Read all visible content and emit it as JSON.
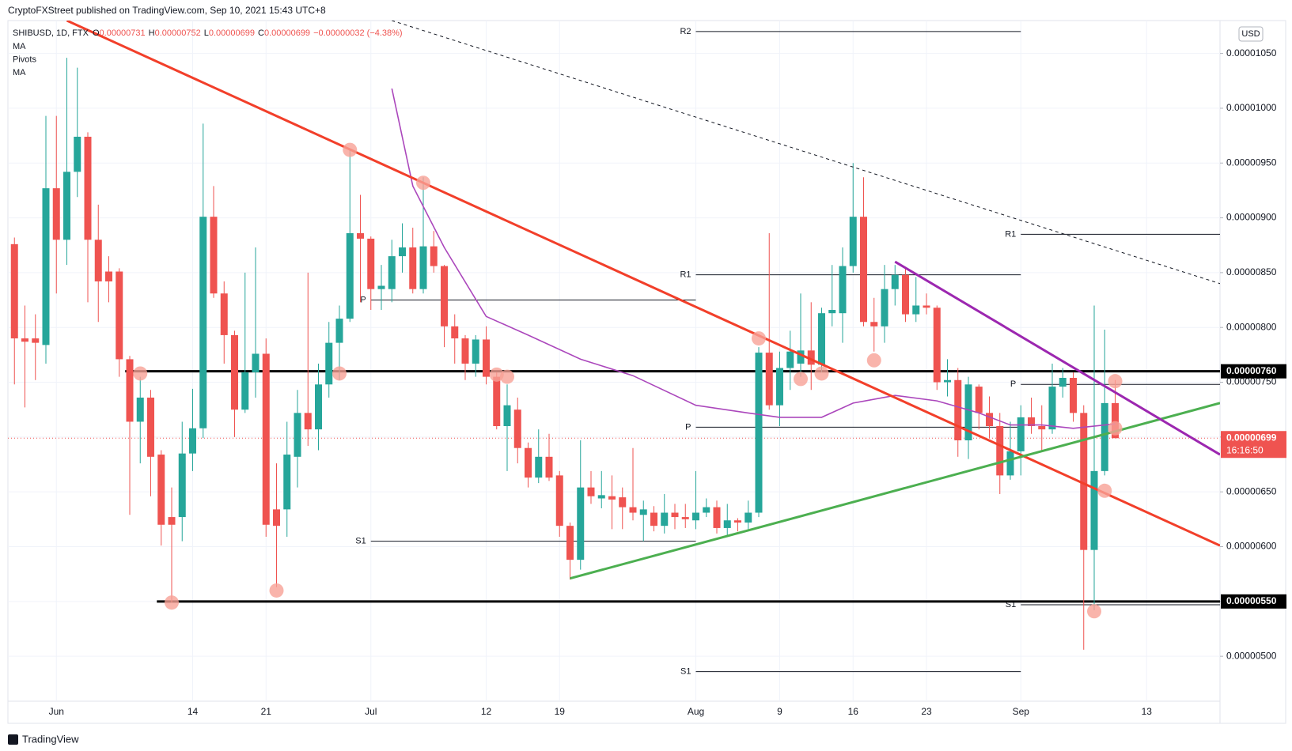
{
  "header": {
    "published": "CryptoFXStreet published on TradingView.com, Sep 10, 2021 15:43 UTC+8",
    "symbol": "SHIBUSD, 1D, FTX",
    "fields": [
      {
        "key": "O",
        "text": "0.00000731"
      },
      {
        "key": "H",
        "text": "0.00000752"
      },
      {
        "key": "L",
        "text": "0.00000699"
      },
      {
        "key": "C",
        "text": "0.00000699"
      }
    ],
    "change": "−0.00000032 (−4.38%)",
    "indicators": [
      "MA",
      "Pivots",
      "MA"
    ],
    "currency": "USD",
    "brand": "TradingView"
  },
  "chart_data": {
    "type": "candlestick",
    "up_color": "#26a69a",
    "down_color": "#ef5350",
    "x": [
      "2021-05-28",
      "2021-05-29",
      "2021-05-30",
      "2021-05-31",
      "2021-06-01",
      "2021-06-02",
      "2021-06-03",
      "2021-06-04",
      "2021-06-05",
      "2021-06-06",
      "2021-06-07",
      "2021-06-08",
      "2021-06-09",
      "2021-06-10",
      "2021-06-11",
      "2021-06-12",
      "2021-06-13",
      "2021-06-14",
      "2021-06-15",
      "2021-06-16",
      "2021-06-17",
      "2021-06-18",
      "2021-06-19",
      "2021-06-20",
      "2021-06-21",
      "2021-06-22",
      "2021-06-23",
      "2021-06-24",
      "2021-06-25",
      "2021-06-26",
      "2021-06-27",
      "2021-06-28",
      "2021-06-29",
      "2021-06-30",
      "2021-07-01",
      "2021-07-02",
      "2021-07-03",
      "2021-07-04",
      "2021-07-05",
      "2021-07-06",
      "2021-07-07",
      "2021-07-08",
      "2021-07-09",
      "2021-07-10",
      "2021-07-11",
      "2021-07-12",
      "2021-07-13",
      "2021-07-14",
      "2021-07-15",
      "2021-07-16",
      "2021-07-17",
      "2021-07-18",
      "2021-07-19",
      "2021-07-20",
      "2021-07-21",
      "2021-07-22",
      "2021-07-23",
      "2021-07-24",
      "2021-07-25",
      "2021-07-26",
      "2021-07-27",
      "2021-07-28",
      "2021-07-29",
      "2021-07-30",
      "2021-07-31",
      "2021-08-01",
      "2021-08-02",
      "2021-08-03",
      "2021-08-04",
      "2021-08-05",
      "2021-08-06",
      "2021-08-07",
      "2021-08-08",
      "2021-08-09",
      "2021-08-10",
      "2021-08-11",
      "2021-08-12",
      "2021-08-13",
      "2021-08-14",
      "2021-08-15",
      "2021-08-16",
      "2021-08-17",
      "2021-08-18",
      "2021-08-19",
      "2021-08-20",
      "2021-08-21",
      "2021-08-22",
      "2021-08-23",
      "2021-08-24",
      "2021-08-25",
      "2021-08-26",
      "2021-08-27",
      "2021-08-28",
      "2021-08-29",
      "2021-08-30",
      "2021-08-31",
      "2021-09-01",
      "2021-09-02",
      "2021-09-03",
      "2021-09-04",
      "2021-09-05",
      "2021-09-06",
      "2021-09-07",
      "2021-09-08",
      "2021-09-09",
      "2021-09-10"
    ],
    "open": [
      8.76e-06,
      7.9e-06,
      7.9e-06,
      7.84e-06,
      9.27e-06,
      8.8e-06,
      9.42e-06,
      9.74e-06,
      8.8e-06,
      8.51e-06,
      8.51e-06,
      7.71e-06,
      7.14e-06,
      7.36e-06,
      6.84e-06,
      6.27e-06,
      6.27e-06,
      6.85e-06,
      7.08e-06,
      9.01e-06,
      8.31e-06,
      7.93e-06,
      7.25e-06,
      7.59e-06,
      7.76e-06,
      6.34e-06,
      6.34e-06,
      6.82e-06,
      7.22e-06,
      7.07e-06,
      7.48e-06,
      7.86e-06,
      8.08e-06,
      8.86e-06,
      8.81e-06,
      8.35e-06,
      8.35e-06,
      8.65e-06,
      8.73e-06,
      8.35e-06,
      8.74e-06,
      8.56e-06,
      8.01e-06,
      7.9e-06,
      7.67e-06,
      7.89e-06,
      7.55e-06,
      7.1e-06,
      7.25e-06,
      6.9e-06,
      6.63e-06,
      6.82e-06,
      6.65e-06,
      6.19e-06,
      5.88e-06,
      6.54e-06,
      6.44e-06,
      6.46e-06,
      6.45e-06,
      6.36e-06,
      6.29e-06,
      6.31e-06,
      6.19e-06,
      6.31e-06,
      6.27e-06,
      6.24e-06,
      6.31e-06,
      6.36e-06,
      6.17e-06,
      6.24e-06,
      6.22e-06,
      6.31e-06,
      7.77e-06,
      7.29e-06,
      7.63e-06,
      7.67e-06,
      7.79e-06,
      7.66e-06,
      8.13e-06,
      8.13e-06,
      8.56e-06,
      9.01e-06,
      8.05e-06,
      8.01e-06,
      8.35e-06,
      8.48e-06,
      8.12e-06,
      8.2e-06,
      8.18e-06,
      7.5e-06,
      7.52e-06,
      6.97e-06,
      7.46e-06,
      7.22e-06,
      7.1e-06,
      6.65e-06,
      6.87e-06,
      7.18e-06,
      7.1e-06,
      7.07e-06,
      7.46e-06,
      7.54e-06,
      7.22e-06,
      5.97e-06,
      6.69e-06,
      7.31e-06
    ],
    "high": [
      8.82e-06,
      8.2e-06,
      8.12e-06,
      9.93e-06,
      9.93e-06,
      1.046e-05,
      1.037e-05,
      9.78e-06,
      9.12e-06,
      8.65e-06,
      8.54e-06,
      7.74e-06,
      7.55e-06,
      7.43e-06,
      6.88e-06,
      6.54e-06,
      7.14e-06,
      7.44e-06,
      9.86e-06,
      9.29e-06,
      8.42e-06,
      7.97e-06,
      8.5e-06,
      8.73e-06,
      7.9e-06,
      6.76e-06,
      7.14e-06,
      7.43e-06,
      8.5e-06,
      7.67e-06,
      8.05e-06,
      8.2e-06,
      9.63e-06,
      9.21e-06,
      8.83e-06,
      8.57e-06,
      8.8e-06,
      8.95e-06,
      8.91e-06,
      9.37e-06,
      8.88e-06,
      8.57e-06,
      8.12e-06,
      7.93e-06,
      7.93e-06,
      8.01e-06,
      7.59e-06,
      7.48e-06,
      7.36e-06,
      6.95e-06,
      7.07e-06,
      7.03e-06,
      6.69e-06,
      6.22e-06,
      6.97e-06,
      6.69e-06,
      6.69e-06,
      6.65e-06,
      6.54e-06,
      6.9e-06,
      6.42e-06,
      6.37e-06,
      6.48e-06,
      6.39e-06,
      6.39e-06,
      6.69e-06,
      6.44e-06,
      6.42e-06,
      6.39e-06,
      6.26e-06,
      6.42e-06,
      7.82e-06,
      8.86e-06,
      7.78e-06,
      7.97e-06,
      8.31e-06,
      8.23e-06,
      8.18e-06,
      8.57e-06,
      8.73e-06,
      9.5e-06,
      9.37e-06,
      8.27e-06,
      8.57e-06,
      8.57e-06,
      8.54e-06,
      8.46e-06,
      8.31e-06,
      8.2e-06,
      7.71e-06,
      7.63e-06,
      7.55e-06,
      7.48e-06,
      7.37e-06,
      7.22e-06,
      7.14e-06,
      7.29e-06,
      7.36e-06,
      7.29e-06,
      7.67e-06,
      7.63e-06,
      7.59e-06,
      7.29e-06,
      8.2e-06,
      7.98e-06,
      7.52e-06
    ],
    "low": [
      7.48e-06,
      7.27e-06,
      7.52e-06,
      7.67e-06,
      8.31e-06,
      8.57e-06,
      9.19e-06,
      8.23e-06,
      8.05e-06,
      8.23e-06,
      7.55e-06,
      6.29e-06,
      6.76e-06,
      6.46e-06,
      6.01e-06,
      5.49e-06,
      6.05e-06,
      6.69e-06,
      6.99e-06,
      8.27e-06,
      7.67e-06,
      7e-06,
      7.22e-06,
      7.36e-06,
      6.09e-06,
      5.63e-06,
      6.09e-06,
      6.54e-06,
      6.92e-06,
      6.88e-06,
      7.36e-06,
      7.52e-06,
      8.05e-06,
      8.23e-06,
      8.16e-06,
      8.16e-06,
      8.23e-06,
      8.5e-06,
      8.31e-06,
      8.31e-06,
      8.5e-06,
      7.82e-06,
      7.67e-06,
      7.52e-06,
      7.55e-06,
      7.48e-06,
      7.07e-06,
      6.69e-06,
      6.76e-06,
      6.54e-06,
      6.58e-06,
      6.6e-06,
      6.09e-06,
      5.7e-06,
      5.79e-06,
      6.39e-06,
      6.35e-06,
      6.16e-06,
      6.16e-06,
      6.24e-06,
      6.05e-06,
      6.14e-06,
      6.12e-06,
      6.16e-06,
      6.17e-06,
      6.16e-06,
      6.27e-06,
      6.12e-06,
      6.09e-06,
      6.14e-06,
      6.16e-06,
      6.27e-06,
      7.25e-06,
      7.1e-06,
      7.43e-06,
      7.55e-06,
      7.43e-06,
      7.59e-06,
      8.01e-06,
      7.86e-06,
      8.5e-06,
      8.01e-06,
      7.78e-06,
      7.86e-06,
      8.2e-06,
      8.05e-06,
      8.05e-06,
      8.12e-06,
      7.43e-06,
      7.37e-06,
      6.82e-06,
      6.8e-06,
      7.07e-06,
      6.99e-06,
      6.48e-06,
      6.61e-06,
      6.65e-06,
      7.03e-06,
      6.87e-06,
      7.03e-06,
      7.36e-06,
      7.14e-06,
      5.06e-06,
      5.42e-06,
      6.65e-06,
      6.99e-06
    ],
    "close": [
      7.9e-06,
      7.87e-06,
      7.86e-06,
      9.27e-06,
      8.8e-06,
      9.42e-06,
      9.74e-06,
      8.8e-06,
      8.42e-06,
      8.42e-06,
      7.71e-06,
      7.14e-06,
      7.36e-06,
      6.82e-06,
      6.2e-06,
      6.2e-06,
      6.85e-06,
      7.08e-06,
      9.01e-06,
      8.31e-06,
      7.93e-06,
      7.25e-06,
      7.59e-06,
      7.76e-06,
      6.2e-06,
      6.19e-06,
      6.84e-06,
      7.22e-06,
      7.07e-06,
      7.48e-06,
      7.86e-06,
      8.08e-06,
      8.86e-06,
      8.81e-06,
      8.35e-06,
      8.38e-06,
      8.65e-06,
      8.73e-06,
      8.35e-06,
      8.74e-06,
      8.56e-06,
      8.01e-06,
      7.9e-06,
      7.67e-06,
      7.89e-06,
      7.55e-06,
      7.1e-06,
      7.29e-06,
      6.9e-06,
      6.63e-06,
      6.82e-06,
      6.63e-06,
      6.19e-06,
      5.88e-06,
      6.54e-06,
      6.46e-06,
      6.47e-06,
      6.43e-06,
      6.36e-06,
      6.31e-06,
      6.34e-06,
      6.19e-06,
      6.31e-06,
      6.27e-06,
      6.25e-06,
      6.31e-06,
      6.36e-06,
      6.17e-06,
      6.24e-06,
      6.22e-06,
      6.31e-06,
      7.77e-06,
      7.29e-06,
      7.63e-06,
      7.78e-06,
      7.79e-06,
      7.66e-06,
      8.13e-06,
      8.16e-06,
      8.56e-06,
      9.01e-06,
      8.05e-06,
      8.01e-06,
      8.35e-06,
      8.48e-06,
      8.12e-06,
      8.2e-06,
      8.18e-06,
      7.5e-06,
      7.52e-06,
      6.97e-06,
      7.48e-06,
      7.22e-06,
      7.1e-06,
      6.65e-06,
      6.87e-06,
      7.18e-06,
      7.1e-06,
      7.07e-06,
      7.46e-06,
      7.54e-06,
      7.22e-06,
      5.97e-06,
      6.69e-06,
      7.31e-06,
      6.99e-06
    ],
    "xlim": [
      "2021-05-27",
      "2021-09-20"
    ],
    "xticks": [
      {
        "value": "2021-06-01",
        "label": "Jun"
      },
      {
        "value": "2021-06-14",
        "label": "14"
      },
      {
        "value": "2021-06-21",
        "label": "21"
      },
      {
        "value": "2021-07-01",
        "label": "Jul"
      },
      {
        "value": "2021-07-12",
        "label": "12"
      },
      {
        "value": "2021-07-19",
        "label": "19"
      },
      {
        "value": "2021-08-01",
        "label": "Aug"
      },
      {
        "value": "2021-08-09",
        "label": "9"
      },
      {
        "value": "2021-08-16",
        "label": "16"
      },
      {
        "value": "2021-08-23",
        "label": "23"
      },
      {
        "value": "2021-09-01",
        "label": "Sep"
      },
      {
        "value": "2021-09-13",
        "label": "13"
      }
    ],
    "ylim": [
      4.59e-06,
      1.08e-05
    ],
    "yticks": [
      {
        "value": 5e-06,
        "label": "0.00000500"
      },
      {
        "value": 5.5e-06,
        "label": "0.00000550"
      },
      {
        "value": 6e-06,
        "label": "0.00000600"
      },
      {
        "value": 6.5e-06,
        "label": "0.00000650"
      },
      {
        "value": 7e-06,
        "label": "0.00000700"
      },
      {
        "value": 7.5e-06,
        "label": "0.00000750"
      },
      {
        "value": 8e-06,
        "label": "0.00000800"
      },
      {
        "value": 8.5e-06,
        "label": "0.00000850"
      },
      {
        "value": 9e-06,
        "label": "0.00000900"
      },
      {
        "value": 9.5e-06,
        "label": "0.00000950"
      },
      {
        "value": 1e-05,
        "label": "0.00001000"
      },
      {
        "value": 1.05e-05,
        "label": "0.00001050"
      }
    ],
    "grid": true,
    "levels": [
      {
        "value": 7.6e-06,
        "label": "0.00000760"
      },
      {
        "value": 5.5e-06,
        "label": "0.00000550"
      }
    ],
    "last": {
      "value": 6.99e-06,
      "label": "0.00000699",
      "countdown": "16:16:50",
      "color": "#ef5350"
    },
    "pivots": [
      {
        "label": "P",
        "value": 8.25e-06,
        "start": "2021-07-01",
        "end": "2021-08-01"
      },
      {
        "label": "S1",
        "value": 6.05e-06,
        "start": "2021-07-01",
        "end": "2021-08-01"
      },
      {
        "label": "R2",
        "value": 1.07e-05,
        "start": "2021-08-01",
        "end": "2021-09-01"
      },
      {
        "label": "R1",
        "value": 8.48e-06,
        "start": "2021-08-01",
        "end": "2021-09-01"
      },
      {
        "label": "P",
        "value": 7.09e-06,
        "start": "2021-08-01",
        "end": "2021-09-01"
      },
      {
        "label": "S1",
        "value": 4.86e-06,
        "start": "2021-08-01",
        "end": "2021-09-01"
      },
      {
        "label": "R1",
        "value": 8.85e-06,
        "start": "2021-09-01",
        "end": "2021-09-20"
      },
      {
        "label": "P",
        "value": 7.48e-06,
        "start": "2021-09-01",
        "end": "2021-09-20"
      },
      {
        "label": "S1",
        "value": 5.47e-06,
        "start": "2021-09-01",
        "end": "2021-09-20"
      }
    ],
    "trendlines": [
      {
        "color": "#f23f2a",
        "dashed": false,
        "points": [
          {
            "date": "2021-06-02",
            "value": 1.08e-05
          },
          {
            "date": "2021-09-20",
            "value": 6.01e-06
          }
        ]
      },
      {
        "color": "#131722",
        "dashed": true,
        "points": [
          {
            "date": "2021-07-03",
            "value": 1.08e-05
          },
          {
            "date": "2021-09-20",
            "value": 8.4e-06
          }
        ]
      },
      {
        "color": "#4caf50",
        "dashed": false,
        "points": [
          {
            "date": "2021-07-20",
            "value": 5.71e-06
          },
          {
            "date": "2021-09-20",
            "value": 7.31e-06
          }
        ]
      },
      {
        "color": "#9c27b0",
        "dashed": false,
        "points": [
          {
            "date": "2021-08-20",
            "value": 8.6e-06
          },
          {
            "date": "2021-09-20",
            "value": 6.84e-06
          }
        ]
      }
    ],
    "ma": {
      "color": "#ab47bc",
      "x": [
        "2021-07-03",
        "2021-07-05",
        "2021-07-08",
        "2021-07-12",
        "2021-07-16",
        "2021-07-21",
        "2021-07-26",
        "2021-08-01",
        "2021-08-06",
        "2021-08-09",
        "2021-08-13",
        "2021-08-16",
        "2021-08-20",
        "2021-08-24",
        "2021-08-28",
        "2021-08-31",
        "2021-09-03",
        "2021-09-06",
        "2021-09-10"
      ],
      "values": [
        1.018e-05,
        9.29e-06,
        8.73e-06,
        8.1e-06,
        7.93e-06,
        7.71e-06,
        7.56e-06,
        7.29e-06,
        7.22e-06,
        7.18e-06,
        7.18e-06,
        7.31e-06,
        7.38e-06,
        7.33e-06,
        7.22e-06,
        7.11e-06,
        7.11e-06,
        7.08e-06,
        7.12e-06
      ]
    },
    "markers": {
      "color": "#f7a196",
      "x": [
        "2021-06-12",
        "2021-06-22",
        "2021-06-09",
        "2021-06-28",
        "2021-06-29",
        "2021-07-06",
        "2021-07-13",
        "2021-07-14",
        "2021-08-07",
        "2021-08-11",
        "2021-08-13",
        "2021-08-18",
        "2021-09-08",
        "2021-09-09",
        "2021-09-10",
        "2021-09-10"
      ],
      "values": [
        5.49e-06,
        5.6e-06,
        7.58e-06,
        7.58e-06,
        9.62e-06,
        9.32e-06,
        7.57e-06,
        7.55e-06,
        7.9e-06,
        7.53e-06,
        7.58e-06,
        7.7e-06,
        5.41e-06,
        6.51e-06,
        7.51e-06,
        7.08e-06
      ]
    }
  }
}
